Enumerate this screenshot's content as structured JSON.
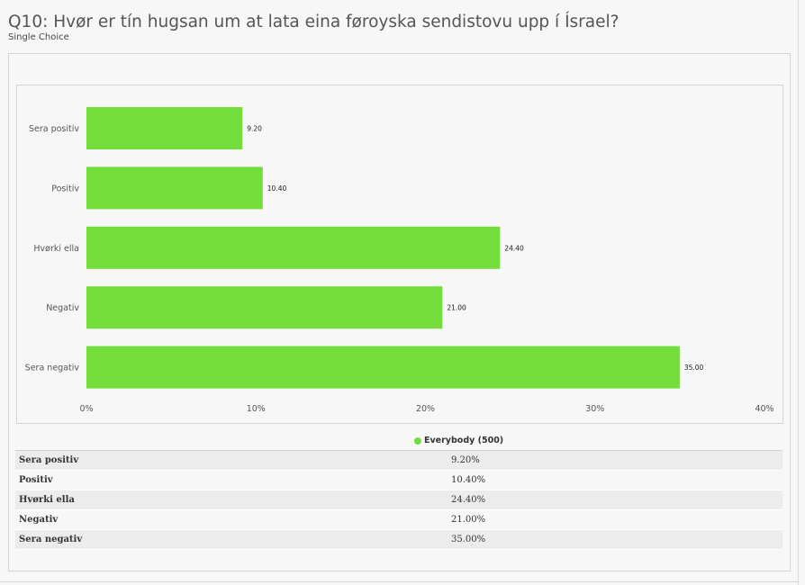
{
  "header": {
    "title": "Q10: Hvør er tín hugsan um at lata eina føroyska sendistovu upp í Ísrael?",
    "subtitle": "Single Choice"
  },
  "legend": {
    "label": "Everybody (500)",
    "color": "#73dd3c"
  },
  "chart_data": {
    "type": "bar",
    "orientation": "horizontal",
    "categories": [
      "Sera positiv",
      "Positiv",
      "Hvørki ella",
      "Negativ",
      "Sera negativ"
    ],
    "series": [
      {
        "name": "Everybody (500)",
        "values": [
          9.2,
          10.4,
          24.4,
          21.0,
          35.0
        ],
        "color": "#73dd3c"
      }
    ],
    "data_labels": [
      "9.20",
      "10.40",
      "24.40",
      "21.00",
      "35.00"
    ],
    "xlim": [
      0,
      40
    ],
    "xticks": [
      0,
      10,
      20,
      30,
      40
    ],
    "xtick_labels": [
      "0%",
      "10%",
      "20%",
      "30%",
      "40%"
    ],
    "grid": false,
    "legend_position": "bottom"
  },
  "table": {
    "rows": [
      {
        "label": "Sera positiv",
        "value": "9.20%"
      },
      {
        "label": "Positiv",
        "value": "10.40%"
      },
      {
        "label": "Hvørki ella",
        "value": "24.40%"
      },
      {
        "label": "Negativ",
        "value": "21.00%"
      },
      {
        "label": "Sera negativ",
        "value": "35.00%"
      }
    ]
  }
}
